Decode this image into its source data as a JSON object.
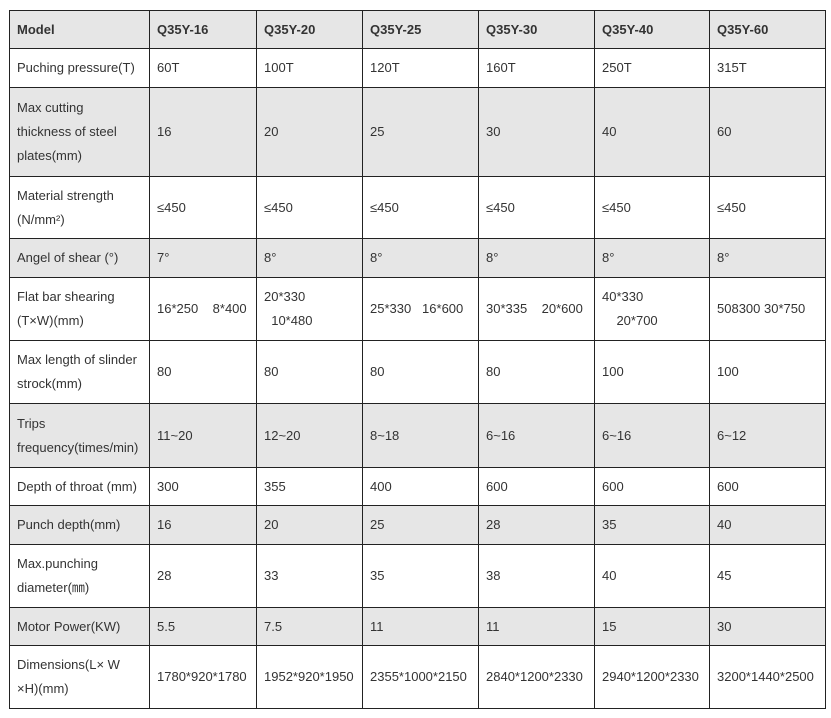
{
  "header": [
    "Model",
    "Q35Y-16",
    "Q35Y-20",
    "Q35Y-25",
    "Q35Y-30",
    "Q35Y-40",
    "Q35Y-60"
  ],
  "rows": [
    {
      "label": [
        "Puching pressure(T)"
      ],
      "values": [
        [
          "60T"
        ],
        [
          "100T"
        ],
        [
          "120T"
        ],
        [
          "160T"
        ],
        [
          "250T"
        ],
        [
          "315T"
        ]
      ],
      "shaded": false
    },
    {
      "label": [
        "Max cutting",
        "thickness of steel",
        "plates(mm)"
      ],
      "values": [
        [
          "16"
        ],
        [
          "20"
        ],
        [
          "25"
        ],
        [
          "30"
        ],
        [
          "40"
        ],
        [
          "60"
        ]
      ],
      "shaded": true
    },
    {
      "label": [
        "Material strength",
        "(N/mm²)"
      ],
      "values": [
        [
          "≤450"
        ],
        [
          "≤450"
        ],
        [
          "≤450"
        ],
        [
          "≤450"
        ],
        [
          "≤450"
        ],
        [
          "≤450"
        ]
      ],
      "shaded": false
    },
    {
      "label": [
        "Angel of shear (°)"
      ],
      "values": [
        [
          "7°"
        ],
        [
          "8°"
        ],
        [
          "8°"
        ],
        [
          "8°"
        ],
        [
          "8°"
        ],
        [
          "8°"
        ]
      ],
      "shaded": true
    },
    {
      "label": [
        "Flat bar shearing",
        "(T×W)(mm)"
      ],
      "values": [
        [
          "16*250    8*400"
        ],
        [
          "20*330",
          "  10*480"
        ],
        [
          "25*330   16*600"
        ],
        [
          "30*335    20*600"
        ],
        [
          "40*330",
          "    20*700"
        ],
        [
          "508300 30*750"
        ]
      ],
      "shaded": false
    },
    {
      "label": [
        "Max length of slinder",
        "strock(mm)"
      ],
      "values": [
        [
          "80"
        ],
        [
          "80"
        ],
        [
          "80"
        ],
        [
          "80"
        ],
        [
          "100"
        ],
        [
          "100"
        ]
      ],
      "shaded": false
    },
    {
      "label": [
        "Trips",
        "frequency(times/min)"
      ],
      "values": [
        [
          "11~20"
        ],
        [
          "12~20"
        ],
        [
          "8~18"
        ],
        [
          "6~16"
        ],
        [
          "6~16"
        ],
        [
          "6~12"
        ]
      ],
      "shaded": true
    },
    {
      "label": [
        "Depth of throat (mm)"
      ],
      "values": [
        [
          "300"
        ],
        [
          "355"
        ],
        [
          "400"
        ],
        [
          "600"
        ],
        [
          "600"
        ],
        [
          "600"
        ]
      ],
      "shaded": false
    },
    {
      "label": [
        "Punch depth(mm)"
      ],
      "values": [
        [
          "16"
        ],
        [
          "20"
        ],
        [
          "25"
        ],
        [
          "28"
        ],
        [
          "35"
        ],
        [
          "40"
        ]
      ],
      "shaded": true
    },
    {
      "label": [
        "Max.punching",
        "diameter(㎜)"
      ],
      "values": [
        [
          "28"
        ],
        [
          "33"
        ],
        [
          "35"
        ],
        [
          "38"
        ],
        [
          "40"
        ],
        [
          "45"
        ]
      ],
      "shaded": false
    },
    {
      "label": [
        "Motor Power(KW)"
      ],
      "values": [
        [
          "5.5"
        ],
        [
          "7.5"
        ],
        [
          "11"
        ],
        [
          "11"
        ],
        [
          "15"
        ],
        [
          "30"
        ]
      ],
      "shaded": true
    },
    {
      "label": [
        "Dimensions(L× W",
        "×H)(mm)"
      ],
      "values": [
        [
          "1780*920*1780"
        ],
        [
          "1952*920*1950"
        ],
        [
          "2355*1000*2150"
        ],
        [
          "2840*1200*2330"
        ],
        [
          "2940*1200*2330"
        ],
        [
          "3200*1440*2500"
        ]
      ],
      "shaded": false
    }
  ]
}
